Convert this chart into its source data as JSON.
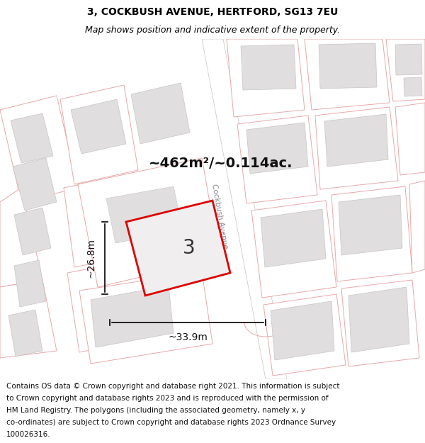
{
  "title_line1": "3, COCKBUSH AVENUE, HERTFORD, SG13 7EU",
  "title_line2": "Map shows position and indicative extent of the property.",
  "area_text": "~462m²/~0.114ac.",
  "property_number": "3",
  "dim_width": "~33.9m",
  "dim_height": "~26.8m",
  "street_label": "Cockbush Avenue",
  "footer_lines": [
    "Contains OS data © Crown copyright and database right 2021. This information is subject",
    "to Crown copyright and database rights 2023 and is reproduced with the permission of",
    "HM Land Registry. The polygons (including the associated geometry, namely x, y",
    "co-ordinates) are subject to Crown copyright and database rights 2023 Ordnance Survey",
    "100026316."
  ],
  "bg_color": "#ffffff",
  "map_bg": "#ffffff",
  "property_fill": "#f0eeee",
  "property_edge": "#dd0000",
  "building_fill": "#e0dede",
  "building_edge": "#c8c4c4",
  "plot_edge": "#e8a8a8",
  "plot_fill": "#ffffff",
  "road_color": "#ffffff",
  "road_edge": "#c8c0c0",
  "title_fontsize": 10,
  "subtitle_fontsize": 9,
  "footer_fontsize": 7.5,
  "fig_width": 6.0,
  "fig_height": 6.25
}
